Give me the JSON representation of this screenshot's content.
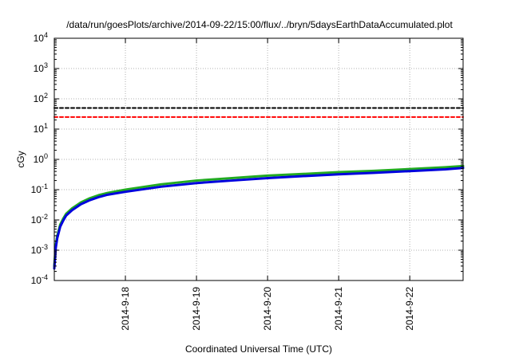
{
  "chart_data": {
    "type": "line",
    "title": "/data/run/goesPlots/archive/2014-09-22/15:00/flux/../bryn/5daysEarthDataAccumulated.plot",
    "xlabel": "Coordinated Universal Time (UTC)",
    "ylabel": "cGy",
    "x_scale": "time",
    "y_scale": "log",
    "xlim": [
      "2014-09-17 00:00",
      "2014-09-22 18:00"
    ],
    "ylim": [
      0.0001,
      10000
    ],
    "x_ticks": [
      "2014-9-18",
      "2014-9-19",
      "2014-9-20",
      "2014-9-21",
      "2014-9-22"
    ],
    "x_tick_values": [
      "2014-09-18 00:00",
      "2014-09-19 00:00",
      "2014-09-20 00:00",
      "2014-09-21 00:00",
      "2014-09-22 00:00"
    ],
    "y_ticks": [
      {
        "value": 0.0001,
        "base": "10",
        "exp": "-4"
      },
      {
        "value": 0.001,
        "base": "10",
        "exp": "-3"
      },
      {
        "value": 0.01,
        "base": "10",
        "exp": "-2"
      },
      {
        "value": 0.1,
        "base": "10",
        "exp": "-1"
      },
      {
        "value": 1,
        "base": "10",
        "exp": "0"
      },
      {
        "value": 10,
        "base": "10",
        "exp": "1"
      },
      {
        "value": 100,
        "base": "10",
        "exp": "2"
      },
      {
        "value": 1000,
        "base": "10",
        "exp": "3"
      },
      {
        "value": 10000,
        "base": "10",
        "exp": "4"
      }
    ],
    "grid": true,
    "series": [
      {
        "color": "#000000",
        "style": "dashed",
        "x": [
          "2014-09-17 00:00",
          "2014-09-22 18:00"
        ],
        "y": [
          50,
          50
        ]
      },
      {
        "color": "#ff0000",
        "style": "dashed",
        "x": [
          "2014-09-17 00:00",
          "2014-09-22 18:00"
        ],
        "y": [
          25,
          25
        ]
      },
      {
        "color": "#22aa22",
        "style": "solid",
        "x": [
          "2014-09-17 00:00",
          "2014-09-17 00:30",
          "2014-09-17 01:00",
          "2014-09-17 02:00",
          "2014-09-17 03:00",
          "2014-09-17 04:00",
          "2014-09-17 06:00",
          "2014-09-17 09:00",
          "2014-09-17 12:00",
          "2014-09-17 15:00",
          "2014-09-17 18:00",
          "2014-09-18 00:00",
          "2014-09-18 12:00",
          "2014-09-19 00:00",
          "2014-09-19 12:00",
          "2014-09-20 00:00",
          "2014-09-20 12:00",
          "2014-09-21 00:00",
          "2014-09-21 12:00",
          "2014-09-22 00:00",
          "2014-09-22 12:00",
          "2014-09-22 18:00"
        ],
        "y": [
          0.0003,
          0.0015,
          0.003,
          0.007,
          0.011,
          0.016,
          0.024,
          0.038,
          0.052,
          0.066,
          0.078,
          0.1,
          0.15,
          0.2,
          0.24,
          0.29,
          0.33,
          0.38,
          0.42,
          0.48,
          0.55,
          0.6
        ]
      },
      {
        "color": "#0000dd",
        "style": "solid",
        "x": [
          "2014-09-17 00:00",
          "2014-09-17 00:30",
          "2014-09-17 01:00",
          "2014-09-17 02:00",
          "2014-09-17 03:00",
          "2014-09-17 04:00",
          "2014-09-17 06:00",
          "2014-09-17 09:00",
          "2014-09-17 12:00",
          "2014-09-17 15:00",
          "2014-09-17 18:00",
          "2014-09-18 00:00",
          "2014-09-18 12:00",
          "2014-09-19 00:00",
          "2014-09-19 12:00",
          "2014-09-20 00:00",
          "2014-09-20 12:00",
          "2014-09-21 00:00",
          "2014-09-21 12:00",
          "2014-09-22 00:00",
          "2014-09-22 12:00",
          "2014-09-22 18:00"
        ],
        "y": [
          0.00025,
          0.0012,
          0.0025,
          0.006,
          0.0095,
          0.014,
          0.021,
          0.033,
          0.045,
          0.057,
          0.068,
          0.085,
          0.125,
          0.165,
          0.2,
          0.24,
          0.28,
          0.32,
          0.36,
          0.41,
          0.47,
          0.52
        ]
      }
    ]
  }
}
